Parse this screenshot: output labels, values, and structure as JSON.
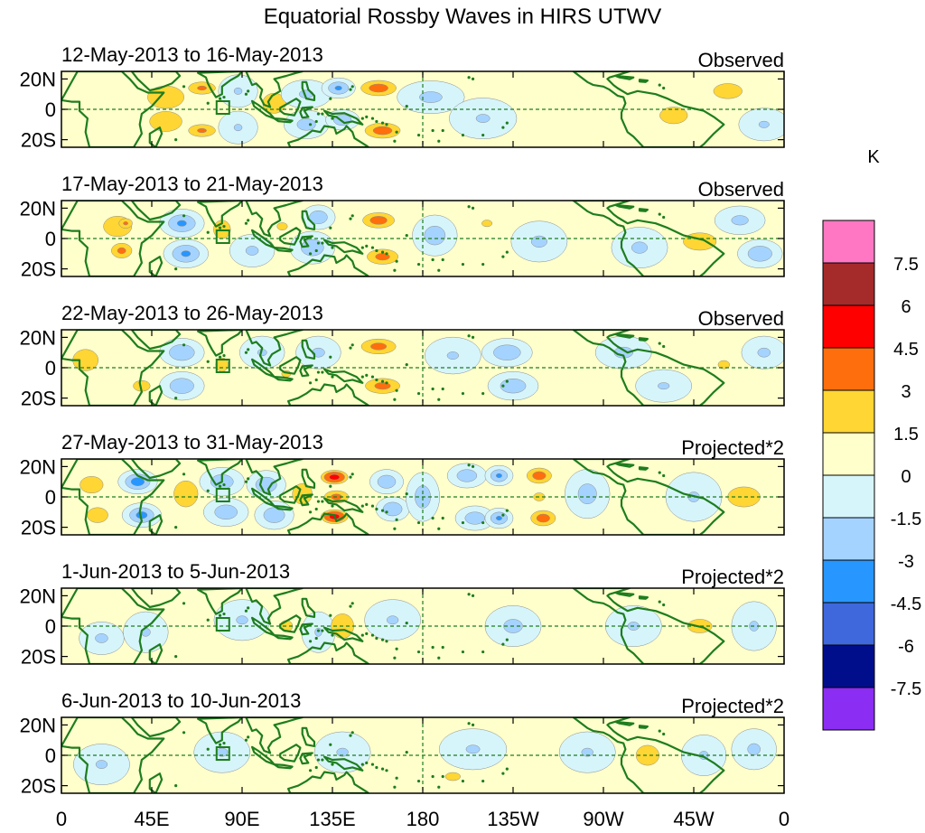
{
  "chart_data": {
    "type": "heatmap",
    "title": "Equatorial Rossby Waves in HIRS UTWV",
    "colorbar": {
      "unit_label": "K",
      "tick_labels": [
        "7.5",
        "6",
        "4.5",
        "3",
        "1.5",
        "0",
        "-1.5",
        "-3",
        "-4.5",
        "-6",
        "-7.5"
      ],
      "colors_top_to_bottom": [
        "#ff77c2",
        "#a52a2a",
        "#ff0000",
        "#ff6e0d",
        "#ffd633",
        "#ffffcc",
        "#d6f5fb",
        "#a5d3ff",
        "#2896ff",
        "#3f68dc",
        "#000e8c",
        "#8b2df3"
      ]
    },
    "x_axis": {
      "longitudes": [
        0,
        45,
        90,
        135,
        180,
        225,
        270,
        315,
        360
      ],
      "tick_labels": [
        "0",
        "45E",
        "90E",
        "135E",
        "180",
        "135W",
        "90W",
        "45W",
        "0"
      ],
      "range_deg": [
        0,
        360
      ]
    },
    "y_axis": {
      "latitudes": [
        20,
        0,
        -20
      ],
      "tick_labels": [
        "20N",
        "0",
        "20S"
      ],
      "range_deg": [
        -25,
        25
      ]
    },
    "panels": [
      {
        "date_range": "12-May-2013 to 16-May-2013",
        "type_label": "Observed",
        "anomalies": [
          {
            "lon": 52,
            "lat": 8,
            "val": 2.2,
            "rl": 14,
            "rt": 12
          },
          {
            "lon": 52,
            "lat": -8,
            "val": 2.0,
            "rl": 14,
            "rt": 12
          },
          {
            "lon": 70,
            "lat": 14,
            "val": 3.2,
            "rl": 8,
            "rt": 5
          },
          {
            "lon": 70,
            "lat": -14,
            "val": 3.2,
            "rl": 8,
            "rt": 5
          },
          {
            "lon": 88,
            "lat": 12,
            "val": -1.6,
            "rl": 7,
            "rt": 8
          },
          {
            "lon": 88,
            "lat": -12,
            "val": -1.6,
            "rl": 7,
            "rt": 8
          },
          {
            "lon": 106,
            "lat": 4,
            "val": 2.0,
            "rl": 10,
            "rt": 12
          },
          {
            "lon": 122,
            "lat": 10,
            "val": -1.7,
            "rl": 9,
            "rt": 7
          },
          {
            "lon": 122,
            "lat": -10,
            "val": -2.0,
            "rl": 8,
            "rt": 7
          },
          {
            "lon": 138,
            "lat": 14,
            "val": -3.2,
            "rl": 6,
            "rt": 5
          },
          {
            "lon": 140,
            "lat": -7,
            "val": -2.6,
            "rl": 6,
            "rt": 5
          },
          {
            "lon": 158,
            "lat": 14,
            "val": 3.6,
            "rl": 10,
            "rt": 6
          },
          {
            "lon": 160,
            "lat": -14,
            "val": 3.6,
            "rl": 10,
            "rt": 6
          },
          {
            "lon": 160,
            "lat": 0,
            "val": 1.0,
            "rl": 10,
            "rt": 8
          },
          {
            "lon": 184,
            "lat": 8,
            "val": -1.8,
            "rl": 12,
            "rt": 8
          },
          {
            "lon": 210,
            "lat": -6,
            "val": -1.6,
            "rl": 12,
            "rt": 10
          },
          {
            "lon": 245,
            "lat": 10,
            "val": 1.3,
            "rl": 10,
            "rt": 8
          },
          {
            "lon": 268,
            "lat": -8,
            "val": 1.3,
            "rl": 10,
            "rt": 8
          },
          {
            "lon": 305,
            "lat": -4,
            "val": 2.0,
            "rl": 12,
            "rt": 10
          },
          {
            "lon": 332,
            "lat": 12,
            "val": 2.2,
            "rl": 11,
            "rt": 8
          },
          {
            "lon": 350,
            "lat": -10,
            "val": -1.6,
            "rl": 9,
            "rt": 8
          }
        ]
      },
      {
        "date_range": "17-May-2013 to 21-May-2013",
        "type_label": "Observed",
        "anomalies": [
          {
            "lon": 28,
            "lat": 8,
            "val": 2.4,
            "rl": 10,
            "rt": 10
          },
          {
            "lon": 30,
            "lat": -8,
            "val": 3.3,
            "rl": 6,
            "rt": 6
          },
          {
            "lon": 32,
            "lat": 10,
            "val": 3.2,
            "rl": 4,
            "rt": 4
          },
          {
            "lon": 60,
            "lat": 10,
            "val": -3.2,
            "rl": 8,
            "rt": 7
          },
          {
            "lon": 62,
            "lat": -10,
            "val": -3.2,
            "rl": 8,
            "rt": 7
          },
          {
            "lon": 80,
            "lat": 6,
            "val": 1.9,
            "rl": 8,
            "rt": 12
          },
          {
            "lon": 95,
            "lat": -8,
            "val": -1.7,
            "rl": 8,
            "rt": 8
          },
          {
            "lon": 110,
            "lat": 8,
            "val": 1.6,
            "rl": 9,
            "rt": 9
          },
          {
            "lon": 125,
            "lat": -6,
            "val": -2.4,
            "rl": 8,
            "rt": 8
          },
          {
            "lon": 128,
            "lat": 14,
            "val": -2.6,
            "rl": 6,
            "rt": 6
          },
          {
            "lon": 158,
            "lat": 12,
            "val": 3.6,
            "rl": 9,
            "rt": 6
          },
          {
            "lon": 160,
            "lat": -12,
            "val": 3.4,
            "rl": 9,
            "rt": 6
          },
          {
            "lon": 186,
            "lat": 2,
            "val": -2.2,
            "rl": 8,
            "rt": 10
          },
          {
            "lon": 205,
            "lat": -14,
            "val": 1.4,
            "rl": 10,
            "rt": 6
          },
          {
            "lon": 212,
            "lat": 10,
            "val": 1.6,
            "rl": 9,
            "rt": 8
          },
          {
            "lon": 238,
            "lat": -2,
            "val": -1.7,
            "rl": 10,
            "rt": 10
          },
          {
            "lon": 260,
            "lat": 8,
            "val": 1.4,
            "rl": 10,
            "rt": 8
          },
          {
            "lon": 288,
            "lat": -6,
            "val": -1.7,
            "rl": 10,
            "rt": 10
          },
          {
            "lon": 318,
            "lat": -2,
            "val": 2.6,
            "rl": 11,
            "rt": 8
          },
          {
            "lon": 338,
            "lat": 12,
            "val": -1.8,
            "rl": 9,
            "rt": 7
          },
          {
            "lon": 348,
            "lat": -10,
            "val": -2.6,
            "rl": 8,
            "rt": 7
          }
        ]
      },
      {
        "date_range": "22-May-2013 to 26-May-2013",
        "type_label": "Observed",
        "anomalies": [
          {
            "lon": 12,
            "lat": 5,
            "val": 1.9,
            "rl": 12,
            "rt": 14
          },
          {
            "lon": 40,
            "lat": -12,
            "val": 1.8,
            "rl": 9,
            "rt": 8
          },
          {
            "lon": 60,
            "lat": 10,
            "val": -2.8,
            "rl": 8,
            "rt": 7
          },
          {
            "lon": 60,
            "lat": -12,
            "val": -2.6,
            "rl": 8,
            "rt": 7
          },
          {
            "lon": 80,
            "lat": 2,
            "val": 1.7,
            "rl": 8,
            "rt": 12
          },
          {
            "lon": 100,
            "lat": 10,
            "val": -1.6,
            "rl": 8,
            "rt": 8
          },
          {
            "lon": 112,
            "lat": -4,
            "val": 1.6,
            "rl": 8,
            "rt": 8
          },
          {
            "lon": 128,
            "lat": 10,
            "val": -1.7,
            "rl": 8,
            "rt": 8
          },
          {
            "lon": 158,
            "lat": 14,
            "val": 3.4,
            "rl": 10,
            "rt": 6
          },
          {
            "lon": 160,
            "lat": -12,
            "val": 3.4,
            "rl": 10,
            "rt": 6
          },
          {
            "lon": 195,
            "lat": 8,
            "val": -1.6,
            "rl": 10,
            "rt": 9
          },
          {
            "lon": 222,
            "lat": 10,
            "val": -2.6,
            "rl": 9,
            "rt": 7
          },
          {
            "lon": 225,
            "lat": -12,
            "val": -2.4,
            "rl": 9,
            "rt": 7
          },
          {
            "lon": 250,
            "lat": 0,
            "val": 1.4,
            "rl": 10,
            "rt": 10
          },
          {
            "lon": 280,
            "lat": 10,
            "val": -1.8,
            "rl": 10,
            "rt": 8
          },
          {
            "lon": 300,
            "lat": -12,
            "val": -1.6,
            "rl": 10,
            "rt": 8
          },
          {
            "lon": 330,
            "lat": 2,
            "val": 1.6,
            "rl": 10,
            "rt": 10
          },
          {
            "lon": 350,
            "lat": 10,
            "val": -1.7,
            "rl": 8,
            "rt": 8
          }
        ]
      },
      {
        "date_range": "27-May-2013 to 31-May-2013",
        "type_label": "Projected*2",
        "anomalies": [
          {
            "lon": 15,
            "lat": 8,
            "val": 2.0,
            "rl": 10,
            "rt": 10
          },
          {
            "lon": 18,
            "lat": -12,
            "val": 2.2,
            "rl": 8,
            "rt": 8
          },
          {
            "lon": 38,
            "lat": 10,
            "val": -3.6,
            "rl": 7,
            "rt": 6
          },
          {
            "lon": 40,
            "lat": -12,
            "val": -3.4,
            "rl": 7,
            "rt": 6
          },
          {
            "lon": 62,
            "lat": 2,
            "val": 2.6,
            "rl": 8,
            "rt": 12
          },
          {
            "lon": 80,
            "lat": 10,
            "val": -2.4,
            "rl": 8,
            "rt": 7
          },
          {
            "lon": 82,
            "lat": -10,
            "val": -2.4,
            "rl": 8,
            "rt": 7
          },
          {
            "lon": 102,
            "lat": 8,
            "val": -2.6,
            "rl": 7,
            "rt": 7
          },
          {
            "lon": 106,
            "lat": -12,
            "val": -2.6,
            "rl": 7,
            "rt": 7
          },
          {
            "lon": 120,
            "lat": 2,
            "val": 2.4,
            "rl": 7,
            "rt": 10
          },
          {
            "lon": 136,
            "lat": 13,
            "val": 5.0,
            "rl": 7,
            "rt": 5
          },
          {
            "lon": 137,
            "lat": 0,
            "val": 3.4,
            "rl": 7,
            "rt": 5
          },
          {
            "lon": 136,
            "lat": -13,
            "val": 5.0,
            "rl": 7,
            "rt": 5
          },
          {
            "lon": 162,
            "lat": 10,
            "val": -2.6,
            "rl": 6,
            "rt": 6
          },
          {
            "lon": 165,
            "lat": -8,
            "val": -2.8,
            "rl": 6,
            "rt": 6
          },
          {
            "lon": 180,
            "lat": 0,
            "val": -2.2,
            "rl": 6,
            "rt": 12
          },
          {
            "lon": 202,
            "lat": 14,
            "val": -2.4,
            "rl": 7,
            "rt": 6
          },
          {
            "lon": 206,
            "lat": -14,
            "val": -2.4,
            "rl": 7,
            "rt": 6
          },
          {
            "lon": 218,
            "lat": 14,
            "val": -3.2,
            "rl": 5,
            "rt": 5
          },
          {
            "lon": 218,
            "lat": -14,
            "val": -3.2,
            "rl": 5,
            "rt": 5
          },
          {
            "lon": 238,
            "lat": 14,
            "val": 3.6,
            "rl": 7,
            "rt": 6
          },
          {
            "lon": 240,
            "lat": -14,
            "val": 3.6,
            "rl": 7,
            "rt": 6
          },
          {
            "lon": 238,
            "lat": 0,
            "val": 1.8,
            "rl": 6,
            "rt": 6
          },
          {
            "lon": 262,
            "lat": 2,
            "val": -2.0,
            "rl": 8,
            "rt": 12
          },
          {
            "lon": 288,
            "lat": 10,
            "val": 1.4,
            "rl": 10,
            "rt": 8
          },
          {
            "lon": 315,
            "lat": 0,
            "val": -1.6,
            "rl": 10,
            "rt": 12
          },
          {
            "lon": 340,
            "lat": 0,
            "val": 5.2,
            "rl": 8,
            "rt": 6
          },
          {
            "lon": 340,
            "lat": 0,
            "val": 2.0,
            "rl": 14,
            "rt": 12
          }
        ]
      },
      {
        "date_range": "1-Jun-2013 to 5-Jun-2013",
        "type_label": "Projected*2",
        "anomalies": [
          {
            "lon": 20,
            "lat": -8,
            "val": -1.7,
            "rl": 8,
            "rt": 8
          },
          {
            "lon": 42,
            "lat": -4,
            "val": -1.6,
            "rl": 8,
            "rt": 10
          },
          {
            "lon": 70,
            "lat": 2,
            "val": 1.3,
            "rl": 10,
            "rt": 12
          },
          {
            "lon": 90,
            "lat": 4,
            "val": -1.6,
            "rl": 10,
            "rt": 10
          },
          {
            "lon": 112,
            "lat": 0,
            "val": 1.7,
            "rl": 8,
            "rt": 10
          },
          {
            "lon": 128,
            "lat": -4,
            "val": -1.6,
            "rl": 6,
            "rt": 10
          },
          {
            "lon": 140,
            "lat": 0,
            "val": 2.4,
            "rl": 8,
            "rt": 12
          },
          {
            "lon": 165,
            "lat": 4,
            "val": -1.6,
            "rl": 10,
            "rt": 10
          },
          {
            "lon": 195,
            "lat": 0,
            "val": 1.3,
            "rl": 10,
            "rt": 10
          },
          {
            "lon": 225,
            "lat": 0,
            "val": -1.8,
            "rl": 10,
            "rt": 10
          },
          {
            "lon": 255,
            "lat": 2,
            "val": 1.3,
            "rl": 10,
            "rt": 10
          },
          {
            "lon": 285,
            "lat": 0,
            "val": -1.6,
            "rl": 10,
            "rt": 10
          },
          {
            "lon": 318,
            "lat": 0,
            "val": 3.5,
            "rl": 6,
            "rt": 4
          },
          {
            "lon": 318,
            "lat": 0,
            "val": 1.8,
            "rl": 13,
            "rt": 10
          },
          {
            "lon": 345,
            "lat": 0,
            "val": -1.6,
            "rl": 8,
            "rt": 12
          }
        ]
      },
      {
        "date_range": "6-Jun-2013 to 10-Jun-2013",
        "type_label": "Projected*2",
        "anomalies": [
          {
            "lon": 20,
            "lat": -6,
            "val": -1.6,
            "rl": 10,
            "rt": 10
          },
          {
            "lon": 55,
            "lat": 0,
            "val": 1.4,
            "rl": 10,
            "rt": 12
          },
          {
            "lon": 80,
            "lat": 2,
            "val": -1.6,
            "rl": 10,
            "rt": 10
          },
          {
            "lon": 110,
            "lat": 0,
            "val": 1.4,
            "rl": 10,
            "rt": 10
          },
          {
            "lon": 140,
            "lat": 2,
            "val": -1.6,
            "rl": 10,
            "rt": 10
          },
          {
            "lon": 170,
            "lat": 0,
            "val": 1.3,
            "rl": 10,
            "rt": 10
          },
          {
            "lon": 195,
            "lat": -14,
            "val": 1.8,
            "rl": 8,
            "rt": 6
          },
          {
            "lon": 205,
            "lat": 4,
            "val": -1.6,
            "rl": 12,
            "rt": 10
          },
          {
            "lon": 235,
            "lat": -4,
            "val": 1.3,
            "rl": 10,
            "rt": 10
          },
          {
            "lon": 262,
            "lat": 2,
            "val": -1.6,
            "rl": 10,
            "rt": 10
          },
          {
            "lon": 292,
            "lat": 0,
            "val": 2.0,
            "rl": 10,
            "rt": 12
          },
          {
            "lon": 320,
            "lat": 0,
            "val": -1.6,
            "rl": 8,
            "rt": 10
          },
          {
            "lon": 345,
            "lat": 4,
            "val": -1.7,
            "rl": 8,
            "rt": 10
          }
        ]
      }
    ]
  }
}
